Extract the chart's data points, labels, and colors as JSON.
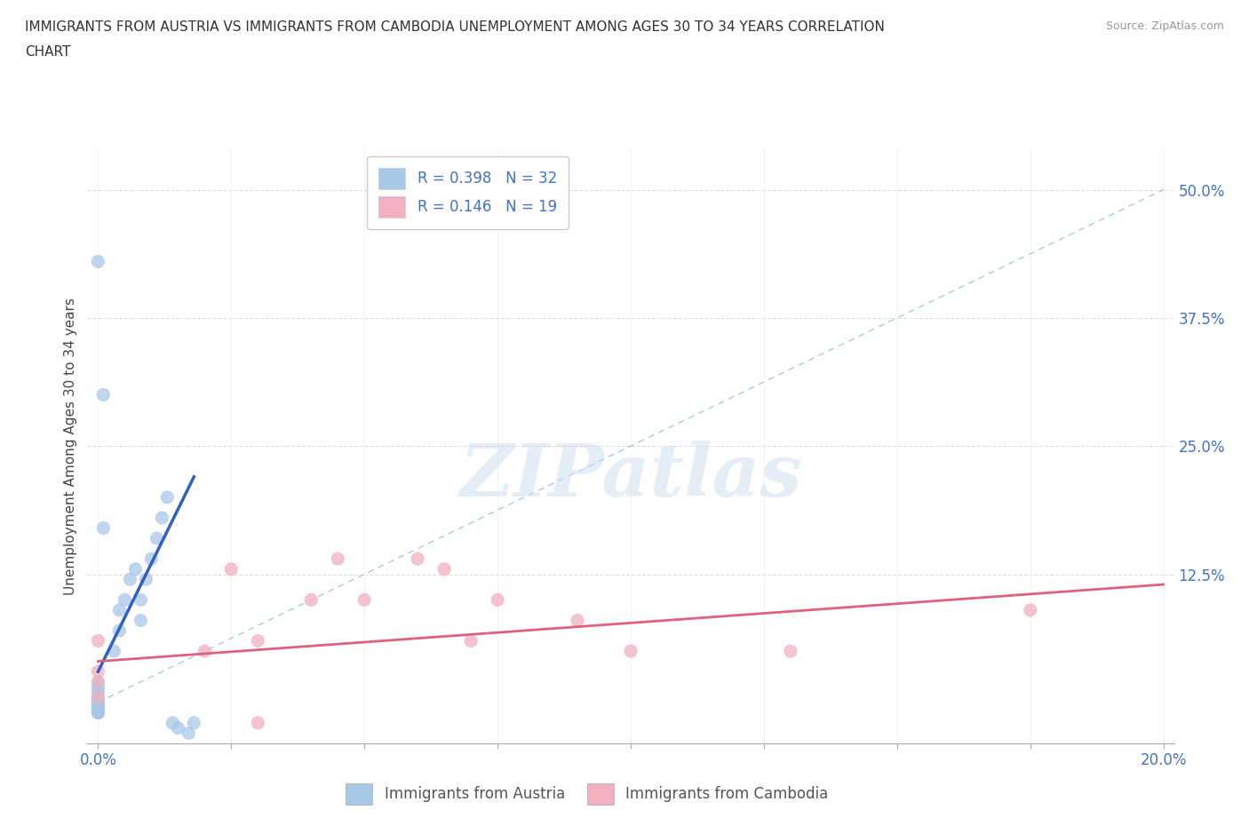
{
  "title_line1": "IMMIGRANTS FROM AUSTRIA VS IMMIGRANTS FROM CAMBODIA UNEMPLOYMENT AMONG AGES 30 TO 34 YEARS CORRELATION",
  "title_line2": "CHART",
  "source_text": "Source: ZipAtlas.com",
  "ylabel": "Unemployment Among Ages 30 to 34 years",
  "xlim": [
    -0.002,
    0.202
  ],
  "ylim": [
    -0.04,
    0.54
  ],
  "xticks": [
    0.0,
    0.025,
    0.05,
    0.075,
    0.1,
    0.125,
    0.15,
    0.175,
    0.2
  ],
  "yticks": [
    0.0,
    0.125,
    0.25,
    0.375,
    0.5
  ],
  "austria_color": "#a8c8e8",
  "cambodia_color": "#f0b0c0",
  "austria_line_color": "#3060c0",
  "cambodia_line_color": "#e06080",
  "ref_line_color": "#8ab0d8",
  "austria_R": 0.398,
  "austria_N": 32,
  "cambodia_R": 0.146,
  "cambodia_N": 19,
  "watermark": "ZIPatlas",
  "austria_x": [
    0.0,
    0.0,
    0.0,
    0.0,
    0.0,
    0.0,
    0.0,
    0.0,
    0.0,
    0.0,
    0.0,
    0.0,
    0.003,
    0.004,
    0.004,
    0.005,
    0.006,
    0.007,
    0.008,
    0.008,
    0.009,
    0.01,
    0.011,
    0.012,
    0.013,
    0.014,
    0.015,
    0.017,
    0.018,
    0.0,
    0.001,
    0.001
  ],
  "austria_y": [
    -0.01,
    -0.01,
    -0.01,
    -0.005,
    -0.005,
    0.0,
    0.0,
    0.0,
    0.005,
    0.01,
    0.015,
    0.02,
    0.05,
    0.07,
    0.09,
    0.1,
    0.12,
    0.13,
    0.08,
    0.1,
    0.12,
    0.14,
    0.16,
    0.18,
    0.2,
    -0.02,
    -0.025,
    -0.03,
    -0.02,
    0.43,
    0.3,
    0.17
  ],
  "cambodia_x": [
    0.0,
    0.0,
    0.0,
    0.0,
    0.02,
    0.025,
    0.03,
    0.03,
    0.04,
    0.045,
    0.05,
    0.06,
    0.065,
    0.07,
    0.075,
    0.09,
    0.1,
    0.13,
    0.175
  ],
  "cambodia_y": [
    0.005,
    0.02,
    0.03,
    0.06,
    0.05,
    0.13,
    0.06,
    -0.02,
    0.1,
    0.14,
    0.1,
    0.14,
    0.13,
    0.06,
    0.1,
    0.08,
    0.05,
    0.05,
    0.09
  ],
  "austria_trend_x": [
    0.0,
    0.018
  ],
  "austria_trend_y": [
    0.03,
    0.22
  ],
  "cambodia_trend_x": [
    0.0,
    0.2
  ],
  "cambodia_trend_y": [
    0.04,
    0.115
  ]
}
